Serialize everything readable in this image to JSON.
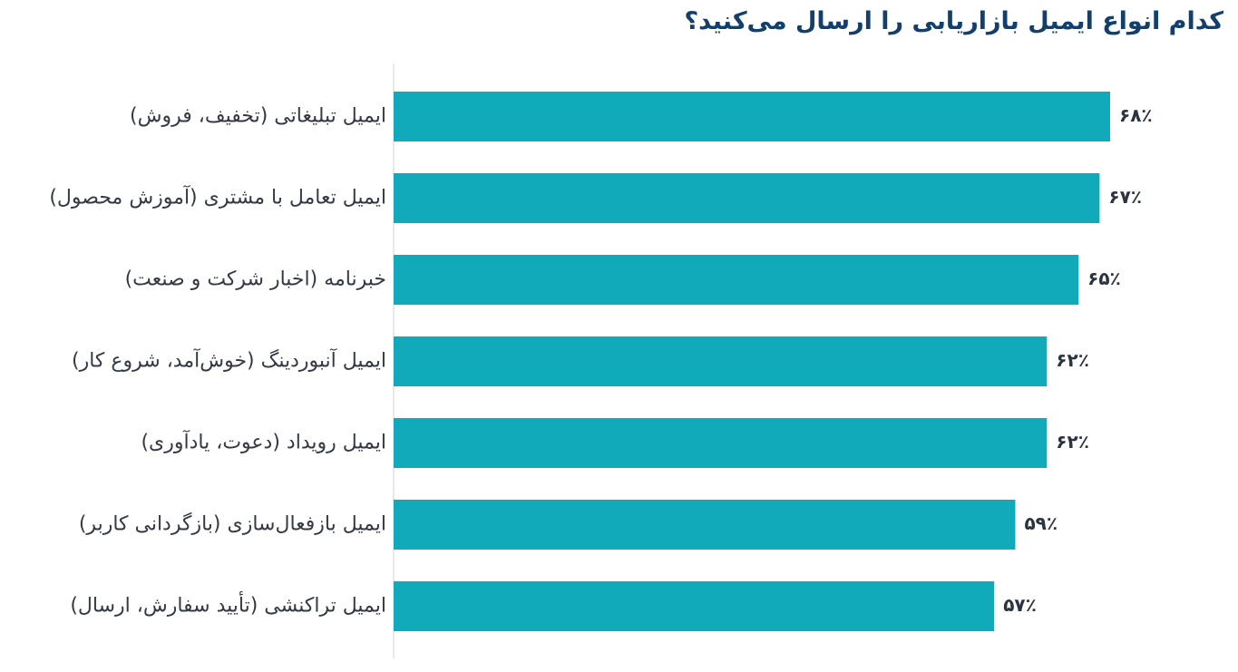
{
  "chart_data": {
    "type": "bar",
    "orientation": "horizontal",
    "title": "کدام انواع ایمیل بازاریابی را ارسال می‌کنید؟",
    "xlabel": "",
    "ylabel": "",
    "xlim": [
      0,
      100
    ],
    "grid": false,
    "categories": [
      "ایمیل تبلیغاتی (تخفیف، فروش)",
      "ایمیل تعامل با مشتری (آموزش محصول)",
      "خبرنامه (اخبار شرکت و صنعت)",
      "ایمیل آنبوردینگ (خوش‌آمد، شروع کار)",
      "ایمیل رویداد (دعوت، یادآوری)",
      "ایمیل بازفعال‌سازی (بازگردانی کاربر)",
      "ایمیل تراکنشی (تأیید سفارش، ارسال)"
    ],
    "values": [
      68,
      67,
      65,
      62,
      62,
      59,
      57
    ],
    "value_labels": [
      "۶۸٪",
      "۶۷٪",
      "۶۵٪",
      "۶۲٪",
      "۶۲٪",
      "۵۹٪",
      "۵۷٪"
    ],
    "colors": {
      "bar": "#10aabb",
      "axis": "#e2e2e2",
      "title": "#123f6b"
    }
  }
}
